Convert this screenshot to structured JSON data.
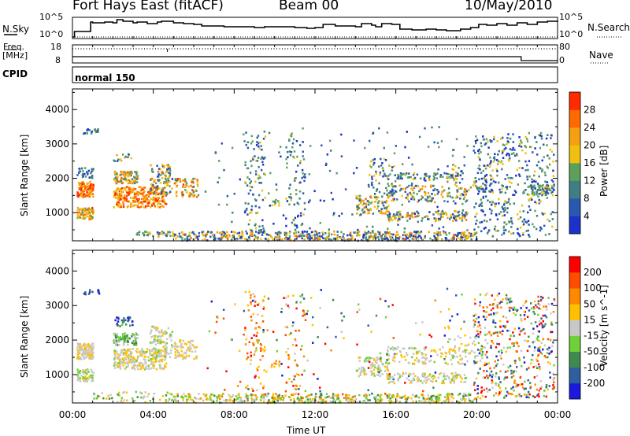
{
  "header": {
    "station": "Fort Hays East (fitACF)",
    "beam": "Beam 00",
    "date": "10/May/2010"
  },
  "left_labels": {
    "nsky": "N.Sky",
    "freq": "Freq.",
    "mhz": "[MHz]",
    "cpid": "CPID"
  },
  "right_labels": {
    "nsearch": "N.Search",
    "nave": "Nave"
  },
  "cpid_text": "normal 150",
  "noise_panel": {
    "top_tick": "10^5",
    "bottom_tick": "10^0"
  },
  "freq_panel": {
    "left_ticks": [
      "18",
      "8"
    ],
    "right_ticks": [
      "80",
      "0"
    ]
  },
  "colors": {
    "power_scale": [
      "#1a32c8",
      "#2a58b0",
      "#3f7f84",
      "#5ca05a",
      "#f0c010",
      "#f5a010",
      "#ff6a00",
      "#ff2a00"
    ],
    "velocity_scale": [
      "#1a1adc",
      "#2f5fa0",
      "#3f8a4e",
      "#6fd03a",
      "#c8c8c8",
      "#ffc000",
      "#ff8800",
      "#ff4d00",
      "#ff0000"
    ]
  },
  "chart_data": [
    {
      "type": "heatmap",
      "name": "power",
      "ylabel": "Slant Range [km]",
      "xlabel": "",
      "x_range": [
        "00:00",
        "24:00"
      ],
      "ylim": [
        180,
        4600
      ],
      "yticks": [
        1000,
        2000,
        3000,
        4000
      ],
      "colorbar": {
        "label": "Power [dB]",
        "ticks": [
          4,
          8,
          12,
          16,
          20,
          24,
          28
        ]
      },
      "regions": [
        {
          "t": [
            0.2,
            1.0
          ],
          "r": [
            1450,
            1900
          ],
          "n": 120,
          "vmin": 0.5,
          "vmax": 1.0
        },
        {
          "t": [
            0.2,
            1.0
          ],
          "r": [
            800,
            1150
          ],
          "n": 70,
          "vmin": 0.4,
          "vmax": 0.9
        },
        {
          "t": [
            0.2,
            1.0
          ],
          "r": [
            2000,
            2300
          ],
          "n": 30,
          "vmin": 0.0,
          "vmax": 0.4
        },
        {
          "t": [
            0.5,
            1.3
          ],
          "r": [
            3300,
            3450
          ],
          "n": 18,
          "vmin": 0.0,
          "vmax": 0.5
        },
        {
          "t": [
            2.0,
            4.6
          ],
          "r": [
            1150,
            1750
          ],
          "n": 280,
          "vmin": 0.5,
          "vmax": 1.0
        },
        {
          "t": [
            2.0,
            3.2
          ],
          "r": [
            1850,
            2200
          ],
          "n": 90,
          "vmin": 0.3,
          "vmax": 0.9
        },
        {
          "t": [
            3.8,
            4.9
          ],
          "r": [
            1500,
            2400
          ],
          "n": 100,
          "vmin": 0.1,
          "vmax": 0.8
        },
        {
          "t": [
            2.0,
            3.0
          ],
          "r": [
            2500,
            2700
          ],
          "n": 14,
          "vmin": 0.2,
          "vmax": 0.7
        },
        {
          "t": [
            5.0,
            6.2
          ],
          "r": [
            1450,
            2000
          ],
          "n": 70,
          "vmin": 0.3,
          "vmax": 0.9
        },
        {
          "t": [
            3.0,
            5.0
          ],
          "r": [
            300,
            450
          ],
          "n": 40,
          "vmin": 0.2,
          "vmax": 0.7
        },
        {
          "t": [
            5.0,
            20.0
          ],
          "r": [
            180,
            450
          ],
          "n": 520,
          "vmin": 0.0,
          "vmax": 0.8
        },
        {
          "t": [
            8.5,
            9.5
          ],
          "r": [
            400,
            3400
          ],
          "n": 90,
          "vmin": 0.1,
          "vmax": 0.6
        },
        {
          "t": [
            10.5,
            11.5
          ],
          "r": [
            400,
            3300
          ],
          "n": 70,
          "vmin": 0.0,
          "vmax": 0.6
        },
        {
          "t": [
            9.8,
            10.2
          ],
          "r": [
            1200,
            1400
          ],
          "n": 10,
          "vmin": 0.3,
          "vmax": 0.6
        },
        {
          "t": [
            14.0,
            15.6
          ],
          "r": [
            950,
            1500
          ],
          "n": 90,
          "vmin": 0.2,
          "vmax": 0.8
        },
        {
          "t": [
            14.6,
            16.0
          ],
          "r": [
            1500,
            2600
          ],
          "n": 60,
          "vmin": 0.0,
          "vmax": 0.6
        },
        {
          "t": [
            15.5,
            19.5
          ],
          "r": [
            750,
            1050
          ],
          "n": 130,
          "vmin": 0.1,
          "vmax": 0.8
        },
        {
          "t": [
            15.5,
            19.5
          ],
          "r": [
            1300,
            1800
          ],
          "n": 130,
          "vmin": 0.1,
          "vmax": 0.8
        },
        {
          "t": [
            16.0,
            19.0
          ],
          "r": [
            1950,
            2150
          ],
          "n": 60,
          "vmin": 0.1,
          "vmax": 0.6
        },
        {
          "t": [
            18.5,
            20.5
          ],
          "r": [
            1600,
            2400
          ],
          "n": 50,
          "vmin": 0.1,
          "vmax": 0.7
        },
        {
          "t": [
            19.8,
            23.8
          ],
          "r": [
            300,
            3350
          ],
          "n": 420,
          "vmin": 0.0,
          "vmax": 0.6
        },
        {
          "t": [
            22.5,
            23.8
          ],
          "r": [
            1500,
            1800
          ],
          "n": 60,
          "vmin": 0.1,
          "vmax": 0.6
        },
        {
          "t": [
            6.5,
            19.5
          ],
          "r": [
            400,
            3500
          ],
          "n": 160,
          "vmin": 0.0,
          "vmax": 0.5
        }
      ]
    },
    {
      "type": "heatmap",
      "name": "velocity",
      "ylabel": "Slant Range [km]",
      "xlabel": "Time UT",
      "x_range": [
        "00:00",
        "24:00"
      ],
      "ylim": [
        180,
        4600
      ],
      "yticks": [
        1000,
        2000,
        3000,
        4000
      ],
      "xticks": [
        "00:00",
        "04:00",
        "08:00",
        "12:00",
        "16:00",
        "20:00",
        "00:00"
      ],
      "colorbar": {
        "label": "Velocity [m s^-1]",
        "ticks": [
          "200",
          "100",
          "50",
          "15",
          "-15",
          "-50",
          "-100",
          "-200"
        ]
      },
      "regions": [
        {
          "t": [
            0.2,
            1.0
          ],
          "r": [
            1450,
            1900
          ],
          "n": 110,
          "vmin": 0.45,
          "vmax": 0.6
        },
        {
          "t": [
            0.2,
            1.0
          ],
          "r": [
            800,
            1150
          ],
          "n": 60,
          "vmin": 0.4,
          "vmax": 0.6
        },
        {
          "t": [
            0.5,
            1.3
          ],
          "r": [
            3300,
            3450
          ],
          "n": 14,
          "vmin": 0.0,
          "vmax": 0.3
        },
        {
          "t": [
            2.0,
            4.6
          ],
          "r": [
            1150,
            1750
          ],
          "n": 260,
          "vmin": 0.42,
          "vmax": 0.62
        },
        {
          "t": [
            2.0,
            3.2
          ],
          "r": [
            1850,
            2200
          ],
          "n": 90,
          "vmin": 0.25,
          "vmax": 0.5
        },
        {
          "t": [
            2.0,
            3.0
          ],
          "r": [
            2400,
            2700
          ],
          "n": 30,
          "vmin": 0.0,
          "vmax": 0.35
        },
        {
          "t": [
            3.8,
            4.9
          ],
          "r": [
            1500,
            2400
          ],
          "n": 100,
          "vmin": 0.4,
          "vmax": 0.6
        },
        {
          "t": [
            5.0,
            6.2
          ],
          "r": [
            1450,
            2000
          ],
          "n": 70,
          "vmin": 0.45,
          "vmax": 0.65
        },
        {
          "t": [
            1.0,
            5.0
          ],
          "r": [
            200,
            500
          ],
          "n": 60,
          "vmin": 0.25,
          "vmax": 0.6
        },
        {
          "t": [
            5.0,
            20.0
          ],
          "r": [
            180,
            450
          ],
          "n": 460,
          "vmin": 0.25,
          "vmax": 0.75
        },
        {
          "t": [
            8.5,
            9.5
          ],
          "r": [
            400,
            3400
          ],
          "n": 80,
          "vmin": 0.5,
          "vmax": 1.0
        },
        {
          "t": [
            10.5,
            11.5
          ],
          "r": [
            400,
            3300
          ],
          "n": 60,
          "vmin": 0.4,
          "vmax": 1.0
        },
        {
          "t": [
            9.8,
            10.2
          ],
          "r": [
            1200,
            1400
          ],
          "n": 10,
          "vmin": 0.55,
          "vmax": 0.7
        },
        {
          "t": [
            14.0,
            15.6
          ],
          "r": [
            950,
            1500
          ],
          "n": 90,
          "vmin": 0.4,
          "vmax": 0.6
        },
        {
          "t": [
            15.5,
            19.5
          ],
          "r": [
            750,
            1050
          ],
          "n": 120,
          "vmin": 0.42,
          "vmax": 0.6
        },
        {
          "t": [
            15.5,
            19.5
          ],
          "r": [
            1300,
            1800
          ],
          "n": 120,
          "vmin": 0.42,
          "vmax": 0.6
        },
        {
          "t": [
            18.5,
            20.5
          ],
          "r": [
            1600,
            2400
          ],
          "n": 40,
          "vmin": 0.42,
          "vmax": 0.62
        },
        {
          "t": [
            19.8,
            23.8
          ],
          "r": [
            300,
            3350
          ],
          "n": 460,
          "vmin": 0.0,
          "vmax": 1.0
        },
        {
          "t": [
            6.5,
            19.5
          ],
          "r": [
            400,
            3500
          ],
          "n": 140,
          "vmin": 0.0,
          "vmax": 1.0
        }
      ]
    }
  ]
}
